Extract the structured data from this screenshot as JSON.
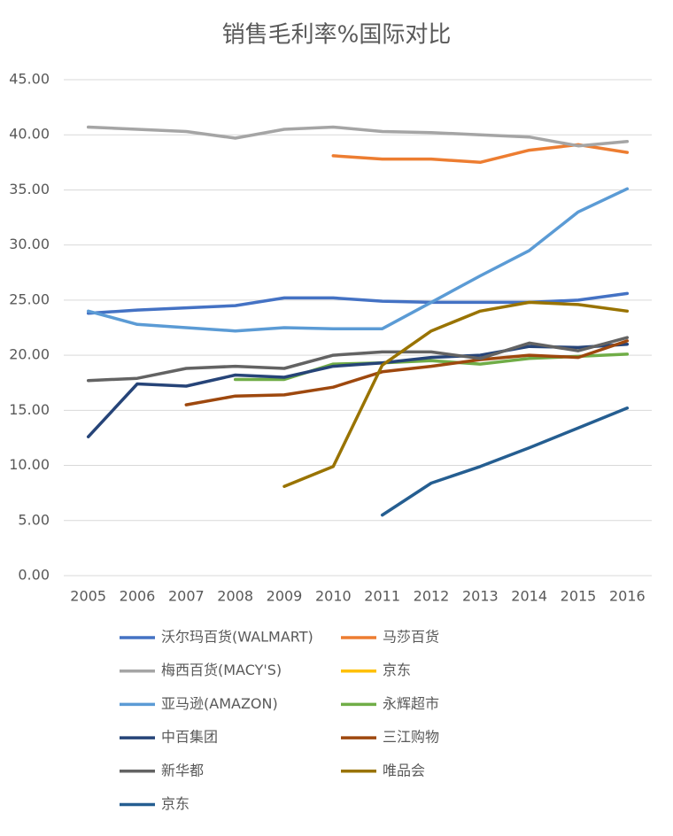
{
  "chart_data": {
    "type": "line",
    "title": "销售毛利率%国际对比",
    "categories": [
      "2005",
      "2006",
      "2007",
      "2008",
      "2009",
      "2010",
      "2011",
      "2012",
      "2013",
      "2014",
      "2015",
      "2016"
    ],
    "ylim": [
      0,
      45
    ],
    "yticks": [
      {
        "value": 0,
        "label": "0.00"
      },
      {
        "value": 5,
        "label": "5.00"
      },
      {
        "value": 10,
        "label": "10.00"
      },
      {
        "value": 15,
        "label": "15.00"
      },
      {
        "value": 20,
        "label": "20.00"
      },
      {
        "value": 25,
        "label": "25.00"
      },
      {
        "value": 30,
        "label": "30.00"
      },
      {
        "value": 35,
        "label": "35.00"
      },
      {
        "value": 40,
        "label": "40.00"
      },
      {
        "value": 45,
        "label": "45.00"
      }
    ],
    "grid": true,
    "legend": "bottom",
    "series": [
      {
        "name": "沃尔玛百货(WALMART)",
        "color": "#4472c4",
        "values": [
          23.8,
          24.1,
          24.3,
          24.5,
          25.2,
          25.2,
          24.9,
          24.8,
          24.8,
          24.8,
          25.0,
          25.6
        ]
      },
      {
        "name": "马莎百货",
        "color": "#ed7d31",
        "values": [
          null,
          null,
          null,
          null,
          null,
          38.1,
          37.8,
          37.8,
          37.5,
          38.6,
          39.1,
          38.4
        ]
      },
      {
        "name": "梅西百货(MACY'S)",
        "color": "#a5a5a5",
        "values": [
          40.7,
          40.5,
          40.3,
          39.7,
          40.5,
          40.7,
          40.3,
          40.2,
          40.0,
          39.8,
          39.0,
          39.4
        ]
      },
      {
        "name": "京东",
        "color": "#ffc000",
        "values": [
          null,
          null,
          null,
          null,
          null,
          null,
          null,
          null,
          null,
          null,
          null,
          null
        ]
      },
      {
        "name": "亚马逊(AMAZON)",
        "color": "#5b9bd5",
        "values": [
          24.0,
          22.8,
          22.5,
          22.2,
          22.5,
          22.4,
          22.4,
          24.8,
          27.2,
          29.5,
          33.0,
          35.1
        ]
      },
      {
        "name": "永辉超市",
        "color": "#70ad47",
        "values": [
          null,
          null,
          null,
          17.8,
          17.8,
          19.2,
          19.3,
          19.5,
          19.2,
          19.7,
          19.9,
          20.1
        ]
      },
      {
        "name": "中百集团",
        "color": "#264478",
        "values": [
          12.6,
          17.4,
          17.2,
          18.2,
          18.0,
          19.0,
          19.3,
          19.8,
          20.0,
          20.8,
          20.7,
          21.0
        ]
      },
      {
        "name": "三江购物",
        "color": "#9e480e",
        "values": [
          null,
          null,
          15.5,
          16.3,
          16.4,
          17.1,
          18.5,
          19.0,
          19.6,
          20.0,
          19.8,
          21.3
        ]
      },
      {
        "name": "新华都",
        "color": "#636363",
        "values": [
          17.7,
          17.9,
          18.8,
          19.0,
          18.8,
          20.0,
          20.3,
          20.3,
          19.7,
          21.1,
          20.4,
          21.6
        ]
      },
      {
        "name": "唯品会",
        "color": "#997300",
        "values": [
          null,
          null,
          null,
          null,
          8.1,
          9.9,
          19.1,
          22.2,
          24.0,
          24.8,
          24.6,
          24.0
        ]
      },
      {
        "name": "京东",
        "color": "#255e91",
        "values": [
          null,
          null,
          null,
          null,
          null,
          null,
          5.5,
          8.4,
          9.9,
          11.6,
          13.4,
          15.2
        ]
      }
    ]
  }
}
